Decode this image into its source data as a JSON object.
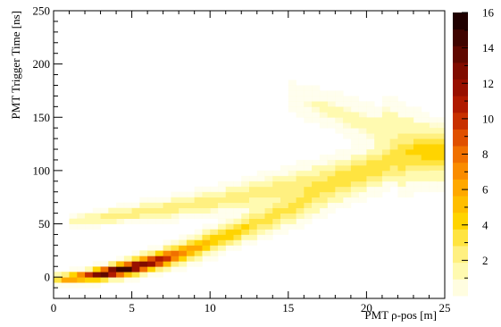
{
  "chart_data": {
    "type": "heatmap",
    "title": "",
    "xlabel": "PMT ρ-pos [m]",
    "ylabel": "PMT Trigger Time [ns]",
    "xlim": [
      0,
      25
    ],
    "ylim": [
      -20,
      250
    ],
    "x_ticks": [
      0,
      5,
      10,
      15,
      20,
      25
    ],
    "y_ticks": [
      0,
      50,
      100,
      150,
      200,
      250
    ],
    "z_range": [
      0,
      16
    ],
    "z_ticks": [
      2,
      4,
      6,
      8,
      10,
      12,
      14,
      16
    ],
    "bin_width_x": 0.5,
    "bin_width_y": 5,
    "colormap": [
      "#fffde0",
      "#fffab0",
      "#fff080",
      "#ffe440",
      "#ffd400",
      "#ffbe00",
      "#ffa800",
      "#fa8c00",
      "#f07000",
      "#e05000",
      "#c83000",
      "#b01a00",
      "#981000",
      "#800c00",
      "#600800",
      "#400400",
      "#200000"
    ],
    "bands": [
      {
        "name": "",
        "points": [
          [
            0,
            -2,
            2
          ],
          [
            1,
            -1,
            8
          ],
          [
            2,
            1,
            10
          ],
          [
            3,
            3,
            14
          ],
          [
            4,
            6,
            16
          ],
          [
            5,
            9,
            15
          ],
          [
            6,
            13,
            13
          ],
          [
            7,
            17,
            11
          ],
          [
            8,
            22,
            8
          ],
          [
            9,
            27,
            6
          ],
          [
            10,
            33,
            5
          ],
          [
            11,
            39,
            4
          ],
          [
            12,
            45,
            4
          ],
          [
            13,
            51,
            3
          ],
          [
            14,
            57,
            3
          ],
          [
            15,
            64,
            3
          ],
          [
            16,
            70,
            3
          ],
          [
            17,
            77,
            2
          ],
          [
            18,
            84,
            2
          ],
          [
            19,
            91,
            2
          ],
          [
            20,
            98,
            2
          ],
          [
            21,
            104,
            2
          ],
          [
            22,
            110,
            1.5
          ],
          [
            23,
            116,
            1.5
          ],
          [
            24,
            122,
            1
          ],
          [
            25,
            127,
            1
          ]
        ]
      },
      {
        "name": "",
        "points": [
          [
            1,
            52,
            1
          ],
          [
            2,
            54,
            1.5
          ],
          [
            3,
            56,
            1.5
          ],
          [
            4,
            58,
            2
          ],
          [
            5,
            60,
            2
          ],
          [
            6,
            62,
            2
          ],
          [
            7,
            64,
            2
          ],
          [
            8,
            66,
            2
          ],
          [
            9,
            68,
            2
          ],
          [
            10,
            71,
            2
          ],
          [
            11,
            73,
            2
          ],
          [
            12,
            76,
            2
          ],
          [
            13,
            79,
            2
          ],
          [
            14,
            82,
            2
          ],
          [
            15,
            85,
            2
          ],
          [
            16,
            88,
            2
          ],
          [
            17,
            91,
            2
          ],
          [
            18,
            95,
            2
          ],
          [
            19,
            99,
            1.5
          ],
          [
            20,
            103,
            1.5
          ],
          [
            21,
            107,
            1.5
          ],
          [
            22,
            111,
            1.5
          ],
          [
            23,
            115,
            1
          ],
          [
            24,
            118,
            1
          ],
          [
            25,
            121,
            1
          ]
        ]
      },
      {
        "name": "",
        "points": [
          [
            15,
            170,
            0.5
          ],
          [
            16,
            165,
            0.5
          ],
          [
            17,
            160,
            0.7
          ],
          [
            18,
            155,
            0.7
          ],
          [
            19,
            149,
            0.8
          ],
          [
            20,
            143,
            0.8
          ],
          [
            21,
            137,
            1
          ],
          [
            22,
            130,
            1
          ],
          [
            23,
            123,
            1
          ],
          [
            24,
            115,
            1
          ],
          [
            25,
            107,
            1
          ]
        ]
      },
      {
        "name": "",
        "points": [
          [
            21,
            152,
            0.6
          ],
          [
            22,
            145,
            0.7
          ],
          [
            23,
            137,
            0.8
          ],
          [
            24,
            128,
            1
          ],
          [
            25,
            119,
            1
          ]
        ]
      },
      {
        "name": "",
        "points": [
          [
            22,
            96,
            0.7
          ],
          [
            23,
            101,
            0.8
          ],
          [
            24,
            104,
            1
          ],
          [
            25,
            108,
            1
          ]
        ]
      }
    ]
  }
}
